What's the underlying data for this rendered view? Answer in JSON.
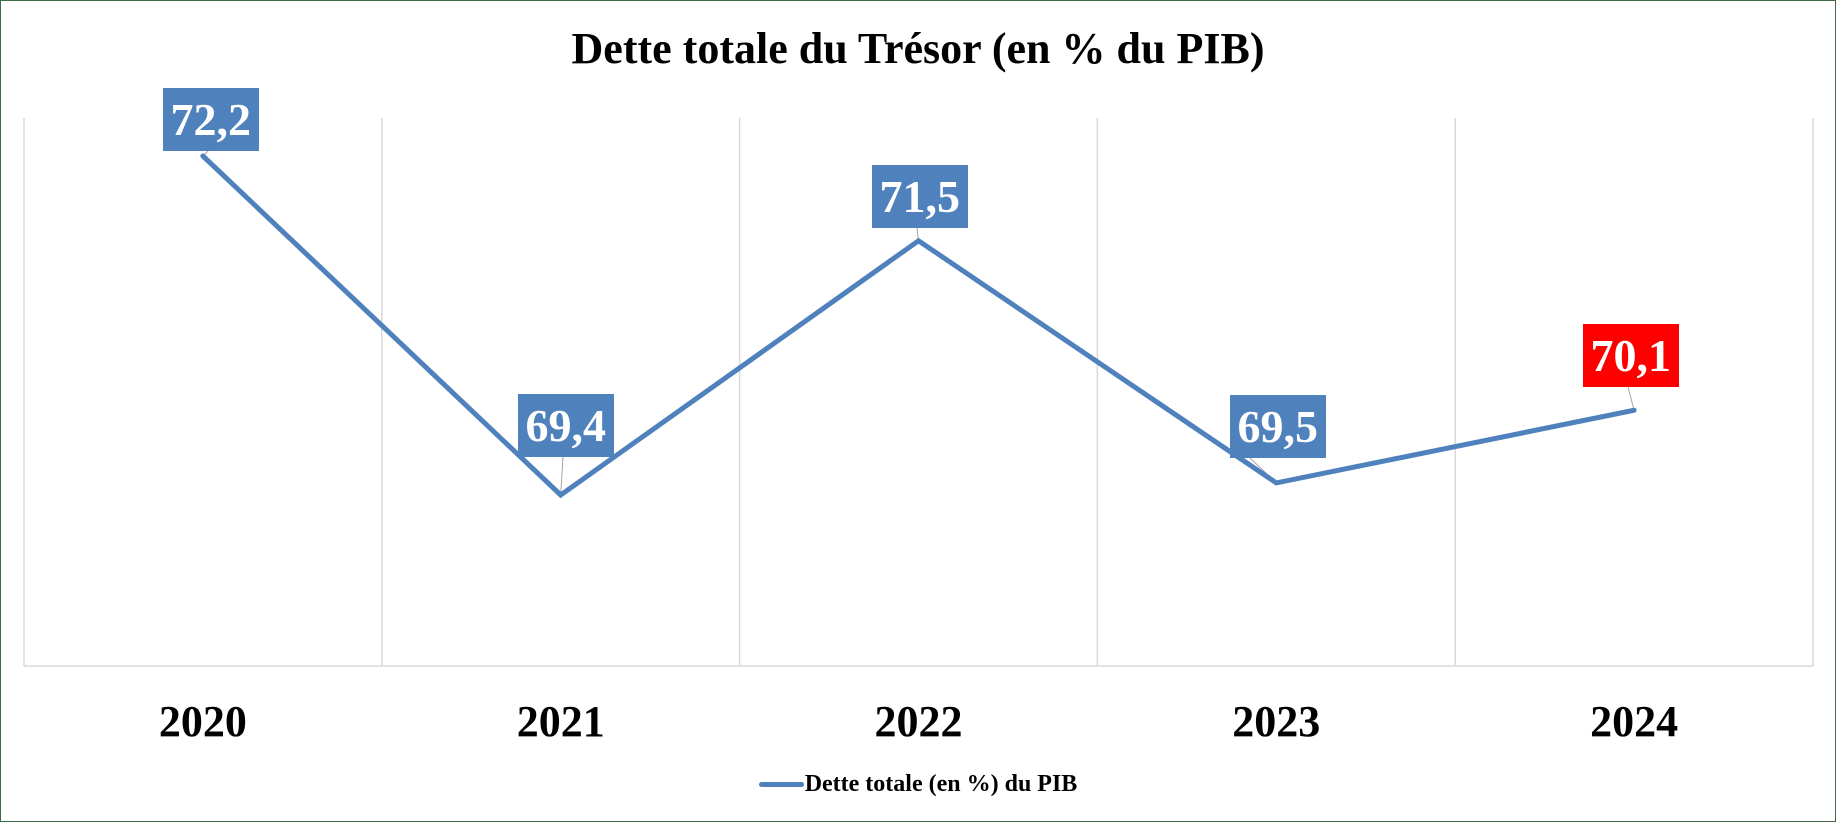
{
  "chart_data": {
    "type": "line",
    "title": "Dette totale du Trésor (en % du PIB)",
    "categories": [
      "2020",
      "2021",
      "2022",
      "2023",
      "2024"
    ],
    "series": [
      {
        "name": "Dette totale (en %) du PIB",
        "values": [
          72.2,
          69.4,
          71.5,
          69.5,
          70.1
        ],
        "labels": [
          "72,2",
          "69,4",
          "71,5",
          "69,5",
          "70,1"
        ],
        "color": "#4f81bd",
        "label_colors": [
          "#4f81bd",
          "#4f81bd",
          "#4f81bd",
          "#4f81bd",
          "#ff0000"
        ]
      }
    ],
    "xlabel": "",
    "ylabel": "",
    "y_axis_visible": false,
    "grid": "vertical category gridlines",
    "legend_position": "bottom"
  },
  "legend": {
    "label": "Dette totale (en %) du PIB",
    "icon": "line-swatch-icon"
  },
  "colors": {
    "line": "#4f81bd",
    "label_default": "#4f81bd",
    "label_highlight": "#ff0000",
    "frame_border": "#3f6b47",
    "grid": "#d9d9d9"
  }
}
